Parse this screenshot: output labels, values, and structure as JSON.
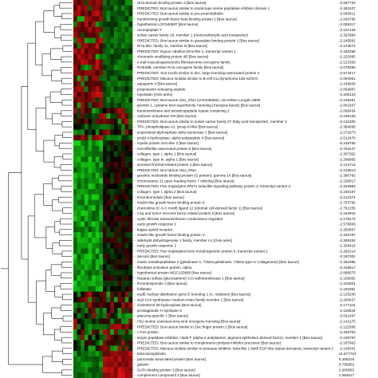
{
  "chart_data": {
    "type": "heatmap",
    "title": "",
    "colors": {
      "low": "#11d411",
      "mid": "#000000",
      "high": "#e01010",
      "line": "#222222"
    },
    "rows": [
      {
        "label": "SH3-domain binding protein 4 [Bos taurus]",
        "value": "-2.097734"
      },
      {
        "label": "PREDICTED: Bos taurus similar to Kazal-type serine peptidase inhibitor domain 1",
        "value": "-2.463107"
      },
      {
        "label": "PREDICTED: Bos taurus similar to pre-proendothelin",
        "value": "-2.095811"
      },
      {
        "label": "transforming growth factor beta binding protein 1 [Bos taurus]",
        "value": "-2.064765"
      },
      {
        "label": "hypothetical LOC540897 [Bos taurus]",
        "value": "-2.095317"
      },
      {
        "label": "neuropeptide Y",
        "value": "-3.107145"
      },
      {
        "label": "solute carrier family 16, member 1 (monocarboxylic acid transporter)",
        "value": "-2.337884"
      },
      {
        "label": "PREDICTED: Bos taurus similar to guanylate binding protein 1 [Bos taurus]",
        "value": "-2.245581"
      },
      {
        "label": "RAS-like, family 11, member B [Bos taurus]",
        "value": "-2.124072"
      },
      {
        "label": "PREDICTED: Equus caballus Dmx-like 1, transcript variant 1",
        "value": "-2.182258"
      },
      {
        "label": "chromatin modifying protein 4B [Bos taurus]",
        "value": "-2.152095"
      },
      {
        "label": "v-maf musculoaponeurotic fibrosarcoma oncogene family",
        "value": "-2.123328"
      },
      {
        "label": "RAB40B, member RAS oncogene family [Bos taurus]",
        "value": "-2.078495"
      },
      {
        "label": "PREDICTED: Sus scrofa similar to dsc, large homolog-associated protein 4",
        "value": "-2.574417"
      },
      {
        "label": "PREDICTED: Macaca mulatta similar to B-cell CLL/lymphoma 11B isoform",
        "value": "-2.094061"
      },
      {
        "label": "aquaporin 4 [Bos taurus]",
        "value": "-2.244926"
      },
      {
        "label": "preprolactin-releasing peptide",
        "value": "-2.054987"
      },
      {
        "label": "myostatin [Ovis aries]",
        "value": "-2.205123"
      },
      {
        "label": "PREDICTED: Bos taurus misc_RNA (LOC535060), microRNA Length=3880",
        "value": "-2.105461"
      },
      {
        "label": "gremlin 1, cysteine knot superfamily, homolog (Xenopus laevis) [Bos taurus]",
        "value": "-2.052347"
      },
      {
        "label": "transmembrane and tetratricopeptide repeat containing 2",
        "value": "-2.095434"
      },
      {
        "label": "carbonic anhydrase XIII [Bos taurus]",
        "value": "-2.196126"
      },
      {
        "label": "PREDICTED: Bos taurus similar to solute carrier family 27 (fatty acid transporter), member 2",
        "value": "-2.132305"
      },
      {
        "label": "TPA: phospholipase A2, group III-like [Bos taurus]",
        "value": "-2.384836"
      },
      {
        "label": "isopentenyl-diphosphate delta isomerase 1 [Bos taurus]",
        "value": "-2.272673"
      },
      {
        "label": "prolyl 4-hydroxylase, alpha polypeptide II [Bos taurus]",
        "value": "-2.612479"
      },
      {
        "label": "myelin protein zero-like 2 [Bos taurus]",
        "value": "-5.249765"
      },
      {
        "label": "microfibrillar-associated protein 5 [Bos taurus]",
        "value": "-2.704447"
      },
      {
        "label": "collagen, type I, alpha 1 [Bos taurus]",
        "value": "-2.307362"
      },
      {
        "label": "collagen, type III, alpha 1 [Bos taurus]",
        "value": "-2.289965"
      },
      {
        "label": "secreted frizzled-related protein 4 [Bos taurus]",
        "value": "-2.144714"
      },
      {
        "label": "PREDICTED: Bos taurus misc_RNA",
        "value": "-2.143813"
      },
      {
        "label": "guanine nucleotide binding protein (G protein), gamma 14 [Bos taurus]",
        "value": "-2.390765"
      },
      {
        "label": "chromosome 21 open reading frame 7 ortholog [Bos taurus]",
        "value": "-2.100617"
      },
      {
        "label": "PREDICTED: Pan troglodytes WNT1 inducible signaling pathway protein 2, transcript variant 3",
        "value": "-2.325983"
      },
      {
        "label": "collagen, type I, alpha 2 [Bos taurus]",
        "value": "-3.230157"
      },
      {
        "label": "thrombomodulin [Bos taurus]",
        "value": "-2.212374"
      },
      {
        "label": "insulin-like growth factor binding protein 6",
        "value": "-2.753756"
      },
      {
        "label": "chemokine (C-X-C motif) ligand 12 (stromal cell-derived factor 1) [Bos taurus]",
        "value": "-2.752155"
      },
      {
        "label": "C1q and tumor necrosis factor related protein 5 [Bos taurus]",
        "value": "-2.184916"
      },
      {
        "label": "cystic fibrosis transmembrane conductance regulator",
        "value": "-2.178174"
      },
      {
        "label": "early growth response 1",
        "value": "-2.579008"
      },
      {
        "label": "kappa opioid receptor",
        "value": "-2.260667"
      },
      {
        "label": "insulin-like growth factor binding protein 3",
        "value": "-2.225787"
      },
      {
        "label": "aldehyde dehydrogenase 1 family, member A1 [Ovis aries]",
        "value": "-2.269152"
      },
      {
        "label": "early growth response 2",
        "value": "-2.326416"
      },
      {
        "label": "PREDICTED: Pan troglodytes bone morphogenetic protein 5, transcript variant 2",
        "value": "-2.292214"
      },
      {
        "label": "decorin [Bos taurus]",
        "value": "-2.197302"
      },
      {
        "label": "matrix metallopeptidase 2 (gelatinase A, 72kDa gelatinase, 72kDa type IV collagenase) [Bos taurus]",
        "value": "-2.451995"
      },
      {
        "label": "fibroblast activation protein, alpha",
        "value": "-2.315617"
      },
      {
        "label": "hypothetical protein MGC133880 [Bos taurus]",
        "value": "-2.089575"
      },
      {
        "label": "heparan sulfate (glucosamine) 3-O-sulfotransferase 1 [Bos taurus]",
        "value": "-2.156002"
      },
      {
        "label": "thrombospondin 4 [Bos taurus]",
        "value": "-2.153001"
      },
      {
        "label": "follistatin",
        "value": "-2.191891"
      },
      {
        "label": "nudE nuclear distribution gene E homolog 1 (A. nidulans) [Bos taurus]",
        "value": "-2.133245"
      },
      {
        "label": "acyl-CoA synthetase medium-chain family member 1 [Bos taurus]",
        "value": "-2.200427"
      },
      {
        "label": "cholesterol 25-hydroxylase [Bos taurus]",
        "value": "-2.177116"
      },
      {
        "label": "prostaglandin H synthase-2",
        "value": "-2.116549"
      },
      {
        "label": "placenta-specific 1 [Bos taurus]",
        "value": "-3.021497"
      },
      {
        "label": "FBJ murine osteosarcoma viral oncogene homolog [Bos taurus]",
        "value": "-2.142175"
      },
      {
        "label": "PREDICTED: Bos taurus similar to Zinc finger protein 2 [Bos taurus]",
        "value": "-2.121508"
      },
      {
        "label": "c-Fos protein",
        "value": "-2.335753"
      },
      {
        "label": "serpin peptidase inhibitor, clade F (alpha-2 antiplasmin, pigment epithelium derived factor), member 1 [Bos taurus]",
        "value": "-2.100797"
      },
      {
        "label": "PREDICTED: Bos taurus similar to complement-cytolysis inhibitor precursor [Bos taurus]",
        "value": "-2.187963"
      },
      {
        "label": "PREDICTED: Macaca mulatta similar to protease inhibitor, beta-like 1 (with EGF-like repeat domains), transcript variant 2",
        "value": "-2.106341"
      },
      {
        "label": "beta-lactoglobulin",
        "value": "11.677743"
      },
      {
        "label": "pancreatic-associated protein [Bos taurus]",
        "value": "6.265219"
      },
      {
        "label": "galanin",
        "value": "8.785852"
      },
      {
        "label": "GATA binding protein 3 [Bos taurus]",
        "value": "2.000063"
      },
      {
        "label": "complement component 3 [Bos taurus]",
        "value": "2.064617"
      }
    ],
    "heatmap_row_profiles": [
      "down",
      "down",
      "down",
      "down",
      "down",
      "down",
      "down",
      "down",
      "down",
      "down",
      "down",
      "down",
      "down",
      "down",
      "down",
      "down",
      "down",
      "down",
      "down",
      "down",
      "mixed",
      "mixed",
      "mixed",
      "mixed",
      "mixed",
      "down",
      "green",
      "green",
      "green",
      "green",
      "green",
      "green",
      "green",
      "green",
      "green",
      "green",
      "green",
      "green",
      "green",
      "green",
      "green",
      "green",
      "green",
      "green",
      "green",
      "green",
      "green",
      "green",
      "green",
      "green",
      "green",
      "green",
      "green",
      "green",
      "mixed",
      "mixed",
      "mixed",
      "mixed",
      "mixed",
      "mixed",
      "mixed",
      "mixed",
      "mixed",
      "mixed",
      "mixed",
      "up",
      "up",
      "up",
      "up",
      "up"
    ]
  }
}
